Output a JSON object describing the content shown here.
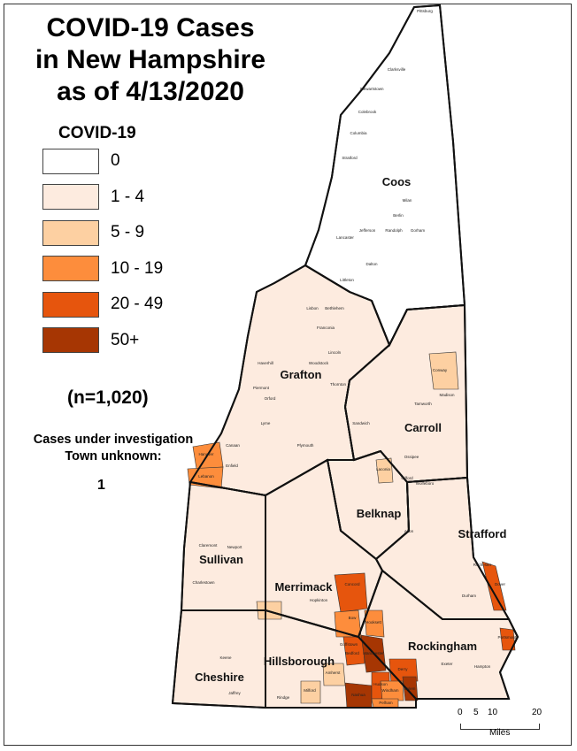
{
  "title": [
    "COVID-19 Cases",
    "in New Hampshire",
    "as of 4/13/2020"
  ],
  "legend": {
    "title": "COVID-19",
    "classes": [
      {
        "label": "0",
        "color": "#ffffff"
      },
      {
        "label": "1 - 4",
        "color": "#fdebdf"
      },
      {
        "label": "5 - 9",
        "color": "#fdd0a2"
      },
      {
        "label": "10 - 19",
        "color": "#fd8d3c"
      },
      {
        "label": "20 - 49",
        "color": "#e6550d"
      },
      {
        "label": "50+",
        "color": "#a63603"
      }
    ]
  },
  "total": "(n=1,020)",
  "unknown": {
    "line1": "Cases under investigation",
    "line2": "Town unknown:",
    "count": "1"
  },
  "counties": [
    "Coos",
    "Grafton",
    "Carroll",
    "Belknap",
    "Sullivan",
    "Merrimack",
    "Strafford",
    "Rockingham",
    "Hillsborough",
    "Cheshire"
  ],
  "towns": [
    "Pittsburg",
    "Clarksville",
    "Stewartstown",
    "Colebrook",
    "Columbia",
    "Stratford",
    "Berlin",
    "Milan",
    "Gorham",
    "Randolph",
    "Jefferson",
    "Lancaster",
    "Dalton",
    "Littleton",
    "Lisbon",
    "Bethlehem",
    "Franconia",
    "Lincoln",
    "Woodstock",
    "Thornton",
    "Haverhill",
    "Piermont",
    "Orford",
    "Lyme",
    "Hanover",
    "Lebanon",
    "Canaan",
    "Enfield",
    "Plymouth",
    "Conway",
    "Madison",
    "Tamworth",
    "Sandwich",
    "Ossipee",
    "Wolfeboro",
    "Laconia",
    "Gilford",
    "Alton",
    "Claremont",
    "Newport",
    "Charlestown",
    "Concord",
    "Hopkinton",
    "Bow",
    "Hooksett",
    "Goffstown",
    "Bedford",
    "Manchester",
    "Nashua",
    "Hudson",
    "Derry",
    "Windham",
    "Salem",
    "Pelham",
    "Keene",
    "Jaffrey",
    "Rindge",
    "Milford",
    "Amherst",
    "Dover",
    "Rochester",
    "Durham",
    "Exeter",
    "Hampton",
    "Portsmouth"
  ],
  "scale_bar": {
    "ticks": [
      "0",
      "5",
      "10",
      "20"
    ],
    "unit": "Miles"
  }
}
